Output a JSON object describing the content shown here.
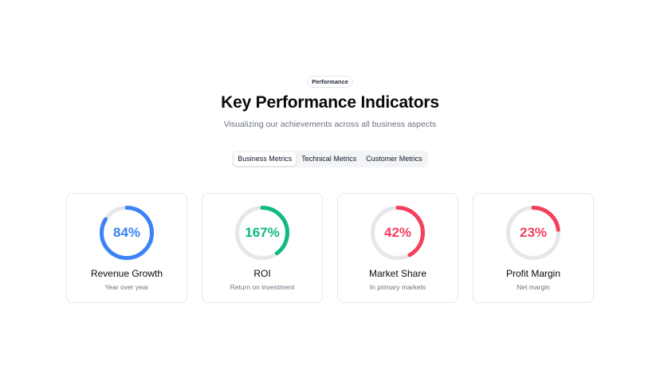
{
  "badge": "Performance",
  "title": "Key Performance Indicators",
  "subtitle": "Visualizing our achievements across all business aspects",
  "tabs": [
    {
      "label": "Business Metrics",
      "active": true
    },
    {
      "label": "Technical Metrics",
      "active": false
    },
    {
      "label": "Customer Metrics",
      "active": false
    }
  ],
  "colors": {
    "track": "#e5e7eb",
    "blue": "#3b82f6",
    "green": "#10b981",
    "red": "#f43f5e"
  },
  "metrics": [
    {
      "value_label": "84%",
      "progress": 0.84,
      "color": "#3b82f6",
      "title": "Revenue Growth",
      "subtitle": "Year over year"
    },
    {
      "value_label": "167%",
      "progress": 0.4,
      "color": "#10b981",
      "title": "ROI",
      "subtitle": "Return on investment"
    },
    {
      "value_label": "42%",
      "progress": 0.42,
      "color": "#f43f5e",
      "title": "Market Share",
      "subtitle": "In primary markets"
    },
    {
      "value_label": "23%",
      "progress": 0.23,
      "color": "#f43f5e",
      "title": "Profit Margin",
      "subtitle": "Net margin"
    }
  ]
}
